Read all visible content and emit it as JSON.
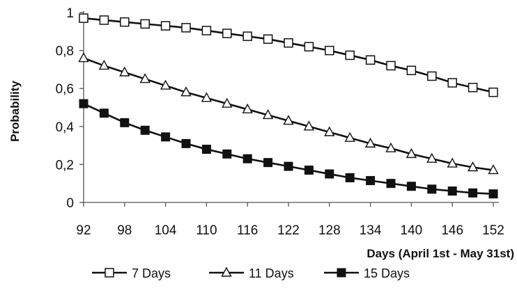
{
  "chart_data": {
    "type": "line",
    "xlabel": "Days (April 1st - May 31st)",
    "ylabel": "Probability",
    "xlim": [
      92,
      152
    ],
    "ylim": [
      0,
      1
    ],
    "x_ticks": [
      92,
      98,
      104,
      110,
      116,
      122,
      128,
      134,
      140,
      146,
      152
    ],
    "y_ticks": [
      {
        "value": 0,
        "label": "0"
      },
      {
        "value": 0.2,
        "label": "0,2"
      },
      {
        "value": 0.4,
        "label": "0,4"
      },
      {
        "value": 0.6,
        "label": "0,6"
      },
      {
        "value": 0.8,
        "label": "0,8"
      },
      {
        "value": 1,
        "label": "1"
      }
    ],
    "grid": false,
    "legend_position": "bottom",
    "x": [
      92,
      95,
      98,
      101,
      104,
      107,
      110,
      113,
      116,
      119,
      122,
      125,
      128,
      131,
      134,
      137,
      140,
      143,
      146,
      149,
      152
    ],
    "series": [
      {
        "name": "7 Days",
        "marker": "square-open",
        "color": "#111111",
        "values": [
          0.97,
          0.96,
          0.95,
          0.94,
          0.93,
          0.92,
          0.905,
          0.89,
          0.875,
          0.86,
          0.84,
          0.82,
          0.8,
          0.775,
          0.75,
          0.72,
          0.695,
          0.665,
          0.63,
          0.605,
          0.58
        ]
      },
      {
        "name": "11 Days",
        "marker": "triangle-open",
        "color": "#111111",
        "values": [
          0.76,
          0.72,
          0.685,
          0.65,
          0.615,
          0.58,
          0.55,
          0.52,
          0.49,
          0.46,
          0.43,
          0.4,
          0.37,
          0.34,
          0.31,
          0.285,
          0.255,
          0.23,
          0.205,
          0.185,
          0.17
        ]
      },
      {
        "name": "15 Days",
        "marker": "square-filled",
        "color": "#111111",
        "values": [
          0.52,
          0.47,
          0.42,
          0.38,
          0.345,
          0.31,
          0.28,
          0.255,
          0.23,
          0.21,
          0.19,
          0.17,
          0.15,
          0.13,
          0.115,
          0.1,
          0.085,
          0.07,
          0.06,
          0.05,
          0.045
        ]
      }
    ]
  }
}
